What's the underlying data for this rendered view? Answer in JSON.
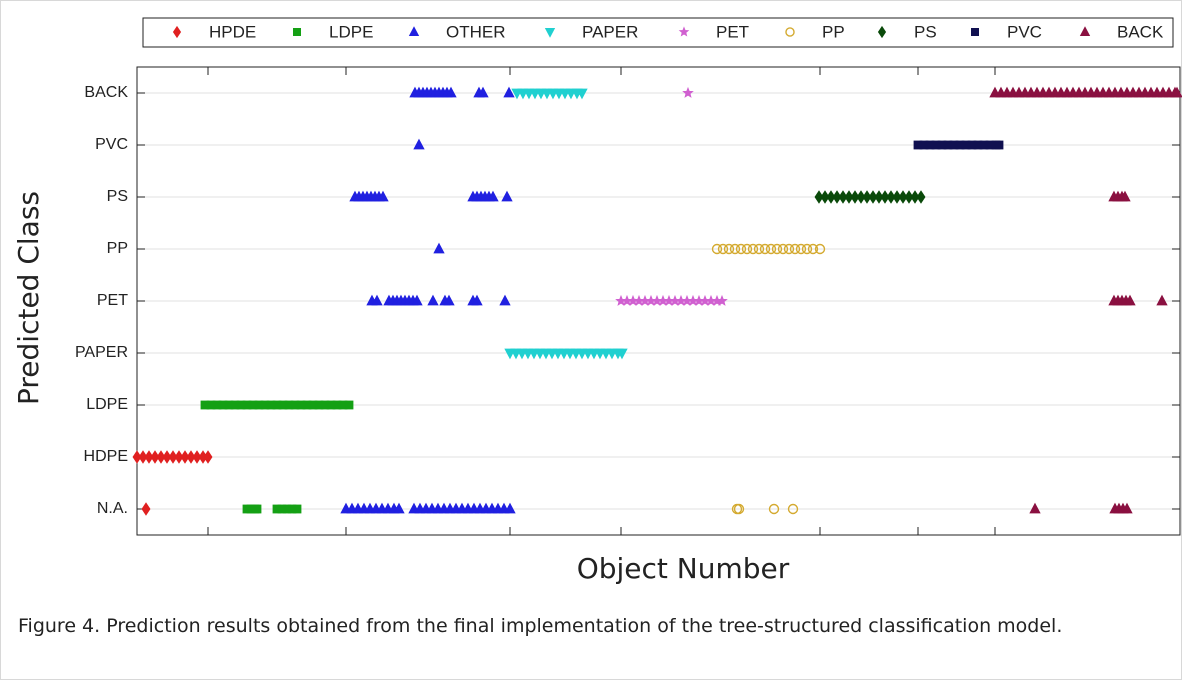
{
  "chart_data": {
    "type": "scatter",
    "xlabel": "Object Number",
    "ylabel": "Predicted Class",
    "caption": "Figure 4. Prediction results obtained from the final implementation of the tree-structured classification model.",
    "categories": [
      "N.A.",
      "HDPE",
      "LDPE",
      "PAPER",
      "PET",
      "PP",
      "PS",
      "PVC",
      "BACK"
    ],
    "xlim": [
      0,
      1043
    ],
    "xticks": [
      71,
      209,
      373,
      484,
      683,
      781,
      858
    ],
    "grid": true,
    "legend": "top",
    "series": [
      {
        "name": "HPDE",
        "color": "#e02020",
        "marker": "diamond",
        "groups": [
          {
            "class": "N.A.",
            "x": [
              9
            ]
          },
          {
            "class": "HDPE",
            "x": [
              0,
              6,
              12,
              18,
              24,
              30,
              36,
              42,
              48,
              54,
              60,
              66,
              71
            ]
          }
        ]
      },
      {
        "name": "LDPE",
        "color": "#14a014",
        "marker": "square",
        "groups": [
          {
            "class": "LDPE",
            "x": [
              68,
              74,
              80,
              86,
              92,
              98,
              104,
              110,
              116,
              122,
              128,
              134,
              140,
              146,
              152,
              158,
              164,
              170,
              176,
              182,
              188,
              194,
              200,
              206,
              212
            ]
          },
          {
            "class": "N.A.",
            "x": [
              110,
              114,
              118,
              120,
              140,
              145,
              150,
              155,
              160
            ]
          }
        ]
      },
      {
        "name": "OTHER",
        "color": "#2020e0",
        "marker": "triangle",
        "groups": [
          {
            "class": "BACK",
            "x": [
              278,
              282,
              286,
              290,
              294,
              298,
              302,
              306,
              310,
              314,
              342,
              346,
              372
            ]
          },
          {
            "class": "PVC",
            "x": [
              282
            ]
          },
          {
            "class": "PS",
            "x": [
              218,
              222,
              226,
              230,
              234,
              238,
              242,
              246,
              336,
              340,
              344,
              348,
              352,
              356,
              370
            ]
          },
          {
            "class": "PP",
            "x": [
              302
            ]
          },
          {
            "class": "PET",
            "x": [
              235,
              240,
              252,
              256,
              260,
              264,
              268,
              272,
              276,
              280,
              296,
              308,
              312,
              336,
              340,
              368
            ]
          },
          {
            "class": "N.A.",
            "x": [
              209,
              215,
              221,
              227,
              233,
              239,
              245,
              251,
              257,
              262,
              277,
              283,
              289,
              295,
              301,
              307,
              313,
              319,
              325,
              331,
              337,
              343,
              349,
              355,
              361,
              367,
              373
            ]
          }
        ]
      },
      {
        "name": "PAPER",
        "color": "#20d0d0",
        "marker": "triangle-down",
        "groups": [
          {
            "class": "BACK",
            "x": [
              380,
              386,
              392,
              398,
              404,
              410,
              416,
              422,
              428,
              434,
              440,
              445
            ]
          },
          {
            "class": "PAPER",
            "x": [
              373,
              379,
              385,
              391,
              397,
              403,
              409,
              415,
              421,
              427,
              433,
              439,
              445,
              451,
              457,
              463,
              469,
              475,
              481,
              485
            ]
          }
        ]
      },
      {
        "name": "PET",
        "color": "#d060d0",
        "marker": "star",
        "groups": [
          {
            "class": "BACK",
            "x": [
              551
            ]
          },
          {
            "class": "PET",
            "x": [
              484,
              490,
              496,
              502,
              508,
              514,
              520,
              526,
              532,
              538,
              544,
              550,
              556,
              562,
              568,
              574,
              580,
              585
            ]
          }
        ]
      },
      {
        "name": "PP",
        "color": "#d4aa30",
        "marker": "circle",
        "groups": [
          {
            "class": "PP",
            "x": [
              580,
              586,
              592,
              598,
              604,
              610,
              616,
              622,
              628,
              634,
              640,
              646,
              652,
              658,
              664,
              670,
              676,
              683
            ]
          },
          {
            "class": "N.A.",
            "x": [
              600,
              602,
              637,
              656
            ]
          }
        ]
      },
      {
        "name": "PS",
        "color": "#0a4a0a",
        "marker": "diamond",
        "groups": [
          {
            "class": "PS",
            "x": [
              682,
              688,
              694,
              700,
              706,
              712,
              718,
              724,
              730,
              736,
              742,
              748,
              754,
              760,
              766,
              772,
              778,
              784
            ]
          }
        ]
      },
      {
        "name": "PVC",
        "color": "#101050",
        "marker": "square",
        "groups": [
          {
            "class": "PVC",
            "x": [
              781,
              787,
              793,
              799,
              805,
              811,
              817,
              823,
              829,
              835,
              841,
              847,
              853,
              859,
              862
            ]
          }
        ]
      },
      {
        "name": "BACK",
        "color": "#8a1040",
        "marker": "triangle",
        "groups": [
          {
            "class": "BACK",
            "x": [
              858,
              864,
              870,
              876,
              882,
              888,
              894,
              900,
              906,
              912,
              918,
              924,
              930,
              936,
              942,
              948,
              954,
              960,
              966,
              972,
              978,
              984,
              990,
              996,
              1002,
              1008,
              1014,
              1020,
              1026,
              1032,
              1038,
              1040
            ]
          },
          {
            "class": "PS",
            "x": [
              977,
              981,
              985,
              988
            ]
          },
          {
            "class": "PET",
            "x": [
              977,
              981,
              985,
              989,
              993,
              1025
            ]
          },
          {
            "class": "N.A.",
            "x": [
              898,
              978,
              982,
              986,
              990
            ]
          }
        ]
      }
    ]
  }
}
